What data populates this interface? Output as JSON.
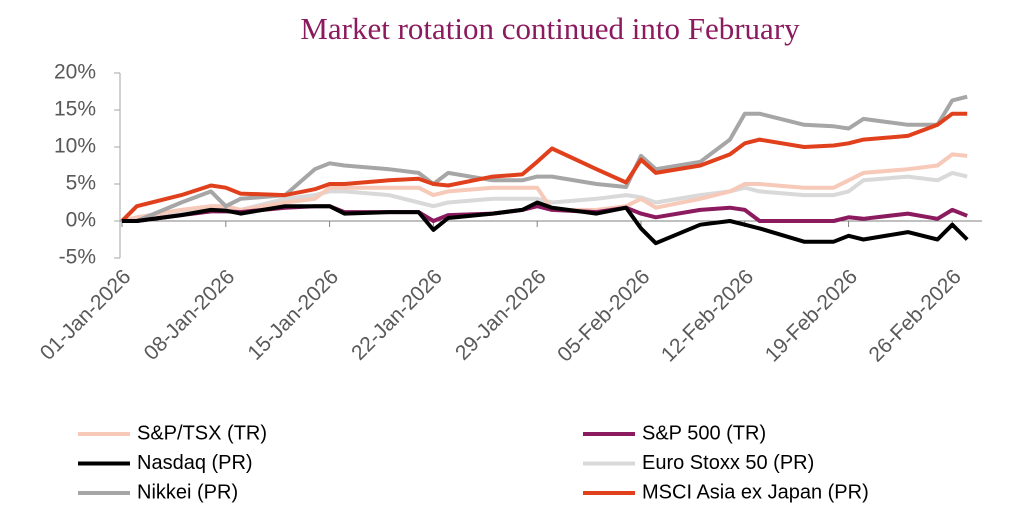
{
  "chart_data": {
    "type": "line",
    "title": "Market rotation continued into February",
    "x": [
      "01-Jan-2026",
      "02-Jan-2026",
      "05-Jan-2026",
      "07-Jan-2026",
      "08-Jan-2026",
      "09-Jan-2026",
      "12-Jan-2026",
      "14-Jan-2026",
      "15-Jan-2026",
      "16-Jan-2026",
      "19-Jan-2026",
      "21-Jan-2026",
      "22-Jan-2026",
      "23-Jan-2026",
      "26-Jan-2026",
      "28-Jan-2026",
      "29-Jan-2026",
      "30-Jan-2026",
      "02-Feb-2026",
      "04-Feb-2026",
      "05-Feb-2026",
      "06-Feb-2026",
      "09-Feb-2026",
      "11-Feb-2026",
      "12-Feb-2026",
      "13-Feb-2026",
      "16-Feb-2026",
      "18-Feb-2026",
      "19-Feb-2026",
      "20-Feb-2026",
      "23-Feb-2026",
      "25-Feb-2026",
      "26-Feb-2026",
      "27-Feb-2026"
    ],
    "series": [
      {
        "name": "S&P/TSX (TR)",
        "color": "#f7c9b8",
        "values": [
          0,
          0.5,
          1.5,
          2,
          2,
          1.5,
          2.5,
          3,
          4.5,
          4.5,
          4.5,
          4.5,
          3.5,
          4,
          4.5,
          4.5,
          4.5,
          1.5,
          1.5,
          2,
          3,
          1.8,
          3,
          4,
          5,
          5,
          4.5,
          4.5,
          5.5,
          6.5,
          7,
          7.5,
          9,
          8.8
        ]
      },
      {
        "name": "S&P 500 (TR)",
        "color": "#8b1a5e",
        "values": [
          0,
          0,
          0.8,
          1.3,
          1.3,
          1.2,
          1.8,
          2,
          2,
          1.2,
          1.2,
          1.2,
          0,
          0.8,
          1,
          1.5,
          2,
          1.5,
          1.2,
          1.8,
          1,
          0.5,
          1.5,
          1.8,
          1.5,
          0,
          0,
          0,
          0.5,
          0.3,
          1,
          0.3,
          1.5,
          0.7
        ]
      },
      {
        "name": "Nasdaq (PR)",
        "color": "#000000",
        "values": [
          0,
          0,
          0.8,
          1.5,
          1.4,
          1,
          2,
          2,
          2,
          1,
          1.2,
          1.2,
          -1.2,
          0.4,
          1,
          1.5,
          2.5,
          1.8,
          1,
          1.8,
          -1,
          -3,
          -0.5,
          0,
          -0.5,
          -1,
          -2.8,
          -2.8,
          -2,
          -2.5,
          -1.5,
          -2.5,
          -0.5,
          -2.5
        ]
      },
      {
        "name": "Euro Stoxx 50 (PR)",
        "color": "#d9d9d9",
        "values": [
          0,
          0,
          1,
          2,
          2,
          1.5,
          3,
          3.5,
          4,
          4,
          3.5,
          2.5,
          2,
          2.5,
          3,
          3,
          3,
          2.5,
          3,
          3.5,
          3.2,
          2.5,
          3.5,
          4,
          4.5,
          4,
          3.5,
          3.5,
          4,
          5.5,
          6,
          5.5,
          6.5,
          6
        ]
      },
      {
        "name": "Nikkei (PR)",
        "color": "#a6a6a6",
        "values": [
          0,
          0,
          2.5,
          4,
          2,
          3,
          3.5,
          7,
          7.8,
          7.5,
          7,
          6.5,
          5,
          6.5,
          5.5,
          5.5,
          6,
          6,
          5,
          4.6,
          8.8,
          7,
          8,
          11,
          14.5,
          14.5,
          13,
          12.8,
          12.5,
          13.8,
          13,
          13,
          16.3,
          16.8
        ]
      },
      {
        "name": "MSCI Asia ex Japan (PR)",
        "color": "#e0401c",
        "values": [
          0,
          2,
          3.5,
          4.8,
          4.5,
          3.7,
          3.5,
          4.3,
          5,
          5,
          5.5,
          5.7,
          5,
          4.8,
          6,
          6.3,
          8,
          9.8,
          7,
          5.2,
          8.3,
          6.5,
          7.5,
          9,
          10.5,
          11,
          10,
          10.2,
          10.5,
          11,
          11.5,
          13,
          14.5,
          14.5
        ]
      }
    ],
    "xlim": [
      "01-Jan-2026",
      "28-Feb-2026"
    ],
    "xticks": [
      "01-Jan-2026",
      "08-Jan-2026",
      "15-Jan-2026",
      "22-Jan-2026",
      "29-Jan-2026",
      "05-Feb-2026",
      "12-Feb-2026",
      "19-Feb-2026",
      "26-Feb-2026"
    ],
    "ylim": [
      -5,
      20
    ],
    "yticks": [
      {
        "value": -5,
        "label": "-5%"
      },
      {
        "value": 0,
        "label": "0%"
      },
      {
        "value": 5,
        "label": "5%"
      },
      {
        "value": 10,
        "label": "10%"
      },
      {
        "value": 15,
        "label": "15%"
      },
      {
        "value": 20,
        "label": "20%"
      }
    ],
    "title_color": "#8b1a5e"
  }
}
